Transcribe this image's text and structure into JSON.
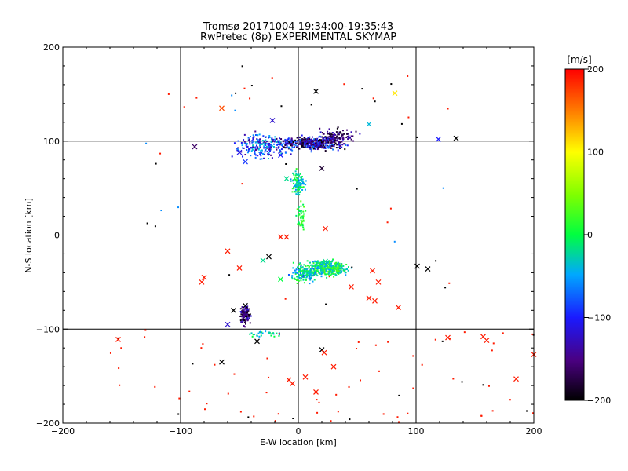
{
  "chart_data": {
    "type": "scatter",
    "title": "Tromsø 20171004 19:34:00-19:35:43",
    "subtitle": "RwPretec (8p) EXPERIMENTAL SKYMAP",
    "xlabel": "E-W location [km]",
    "ylabel": "N-S location [km]",
    "xlim": [
      -200,
      200
    ],
    "ylim": [
      -200,
      200
    ],
    "x_ticks": [
      "−200",
      "−100",
      "0",
      "100",
      "200"
    ],
    "y_ticks": [
      "200",
      "100",
      "0",
      "−100",
      "−200"
    ],
    "grid_at": {
      "x": [
        -100,
        0,
        100
      ],
      "y": [
        -100,
        0,
        100
      ]
    },
    "colorbar": {
      "unit_label": "[m/s]",
      "range": [
        -200,
        200
      ],
      "ticks": [
        "200",
        "100",
        "0",
        "−100",
        "−200"
      ],
      "colormap": "rainbow-black (black → purple → blue → cyan → green → yellow → orange → red)"
    },
    "markers": {
      "dot": "small point, single-station echo",
      "cross": "x marker"
    },
    "clusters": [
      {
        "region": "north",
        "x_range": [
          -70,
          80
        ],
        "y_range": [
          70,
          125
        ],
        "velocity_typical": [
          -150,
          -50
        ]
      },
      {
        "region": "central-column",
        "x_range": [
          -10,
          15
        ],
        "y_range": [
          0,
          70
        ],
        "velocity_typical": [
          -40,
          10
        ]
      },
      {
        "region": "south-central",
        "x_range": [
          -10,
          60
        ],
        "y_range": [
          -65,
          -10
        ],
        "velocity_typical": [
          -50,
          30
        ]
      },
      {
        "region": "south-west",
        "x_range": [
          -55,
          -30
        ],
        "y_range": [
          -100,
          -60
        ],
        "velocity_typical": [
          -150,
          -100
        ]
      }
    ],
    "crosses": [
      {
        "x": 15,
        "y": 153,
        "v": -200
      },
      {
        "x": 82,
        "y": 151,
        "v": 110
      },
      {
        "x": -22,
        "y": 122,
        "v": -120
      },
      {
        "x": 134,
        "y": 103,
        "v": -200
      },
      {
        "x": 119,
        "y": 102,
        "v": -100
      },
      {
        "x": -65,
        "y": 135,
        "v": 170
      },
      {
        "x": -88,
        "y": 94,
        "v": -160
      },
      {
        "x": -50,
        "y": 88,
        "v": -110
      },
      {
        "x": -15,
        "y": 85,
        "v": -100
      },
      {
        "x": 20,
        "y": 71,
        "v": -180
      },
      {
        "x": -45,
        "y": 78,
        "v": -90
      },
      {
        "x": -10,
        "y": 60,
        "v": -20
      },
      {
        "x": 60,
        "y": 118,
        "v": -40
      },
      {
        "x": 23,
        "y": 7,
        "v": 190
      },
      {
        "x": -10,
        "y": -2,
        "v": 190
      },
      {
        "x": -60,
        "y": -17,
        "v": 190
      },
      {
        "x": -25,
        "y": -23,
        "v": -200
      },
      {
        "x": -30,
        "y": -27,
        "v": -20
      },
      {
        "x": 101,
        "y": -33,
        "v": -200
      },
      {
        "x": 110,
        "y": -36,
        "v": -200
      },
      {
        "x": -50,
        "y": -35,
        "v": 190
      },
      {
        "x": 63,
        "y": -38,
        "v": 190
      },
      {
        "x": -15,
        "y": -47,
        "v": 0
      },
      {
        "x": -80,
        "y": -45,
        "v": 190
      },
      {
        "x": -82,
        "y": -50,
        "v": 190
      },
      {
        "x": 68,
        "y": -50,
        "v": 190
      },
      {
        "x": 45,
        "y": -55,
        "v": 190
      },
      {
        "x": 60,
        "y": -67,
        "v": 190
      },
      {
        "x": 65,
        "y": -70,
        "v": 190
      },
      {
        "x": -45,
        "y": -75,
        "v": -200
      },
      {
        "x": -55,
        "y": -80,
        "v": -200
      },
      {
        "x": -60,
        "y": -95,
        "v": -120
      },
      {
        "x": 85,
        "y": -77,
        "v": 190
      },
      {
        "x": -35,
        "y": -113,
        "v": -200
      },
      {
        "x": -153,
        "y": -111,
        "v": 190
      },
      {
        "x": -65,
        "y": -135,
        "v": -200
      },
      {
        "x": 20,
        "y": -122,
        "v": -200
      },
      {
        "x": 22,
        "y": -125,
        "v": 190
      },
      {
        "x": 30,
        "y": -140,
        "v": 190
      },
      {
        "x": 127,
        "y": -109,
        "v": 190
      },
      {
        "x": 160,
        "y": -112,
        "v": 190
      },
      {
        "x": 157,
        "y": -108,
        "v": 190
      },
      {
        "x": 185,
        "y": -153,
        "v": 190
      },
      {
        "x": 200,
        "y": -127,
        "v": 190
      },
      {
        "x": -5,
        "y": -158,
        "v": 190
      },
      {
        "x": -8,
        "y": -154,
        "v": 190
      },
      {
        "x": 6,
        "y": -151,
        "v": 190
      },
      {
        "x": 15,
        "y": -167,
        "v": 190
      },
      {
        "x": 23,
        "y": -28,
        "v": -20
      },
      {
        "x": -15,
        "y": -2,
        "v": 190
      }
    ]
  }
}
